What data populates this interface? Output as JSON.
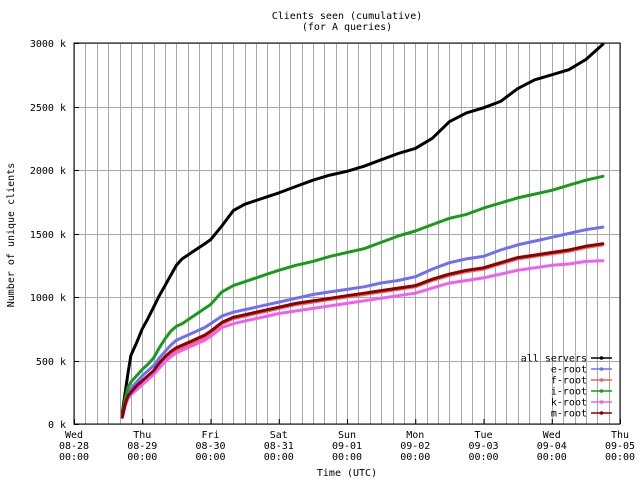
{
  "chart_data": {
    "type": "line",
    "title": "Clients seen (cumulative)",
    "subtitle": "(for A queries)",
    "xlabel": "Time (UTC)",
    "ylabel": "Number of unique clients",
    "xlim": [
      0,
      192
    ],
    "ylim": [
      0,
      3000
    ],
    "y_ticks": [
      {
        "value": 0,
        "label": "0 k"
      },
      {
        "value": 500,
        "label": "500 k"
      },
      {
        "value": 1000,
        "label": "1000 k"
      },
      {
        "value": 1500,
        "label": "1500 k"
      },
      {
        "value": 2000,
        "label": "2000 k"
      },
      {
        "value": 2500,
        "label": "2500 k"
      },
      {
        "value": 3000,
        "label": "3000 k"
      }
    ],
    "x_ticks": [
      {
        "value": 0,
        "day": "Wed",
        "date": "08-28",
        "time": "00:00"
      },
      {
        "value": 24,
        "day": "Thu",
        "date": "08-29",
        "time": "00:00"
      },
      {
        "value": 48,
        "day": "Fri",
        "date": "08-30",
        "time": "00:00"
      },
      {
        "value": 72,
        "day": "Sat",
        "date": "08-31",
        "time": "00:00"
      },
      {
        "value": 96,
        "day": "Sun",
        "date": "09-01",
        "time": "00:00"
      },
      {
        "value": 120,
        "day": "Mon",
        "date": "09-02",
        "time": "00:00"
      },
      {
        "value": 144,
        "day": "Tue",
        "date": "09-03",
        "time": "00:00"
      },
      {
        "value": 168,
        "day": "Wed",
        "date": "09-04",
        "time": "00:00"
      },
      {
        "value": 192,
        "day": "Thu",
        "date": "09-05",
        "time": "00:00"
      }
    ],
    "grid": true,
    "legend_position": "bottom-right",
    "x": [
      17,
      18,
      19,
      20,
      22,
      24,
      26,
      28,
      30,
      32,
      34,
      36,
      38,
      40,
      42,
      44,
      46,
      48,
      52,
      56,
      60,
      64,
      68,
      72,
      78,
      84,
      90,
      96,
      102,
      108,
      114,
      120,
      126,
      132,
      138,
      144,
      150,
      156,
      162,
      168,
      174,
      180,
      186
    ],
    "series": [
      {
        "name": "all servers",
        "color": "#000000",
        "values": [
          90,
          250,
          400,
          540,
          640,
          750,
          830,
          920,
          1010,
          1090,
          1170,
          1250,
          1300,
          1330,
          1360,
          1390,
          1420,
          1450,
          1560,
          1680,
          1730,
          1760,
          1790,
          1820,
          1870,
          1920,
          1960,
          1990,
          2030,
          2080,
          2130,
          2170,
          2250,
          2380,
          2450,
          2490,
          2540,
          2640,
          2710,
          2750,
          2790,
          2870,
          2990
        ]
      },
      {
        "name": "e-root",
        "color": "#6f6ff5",
        "values": [
          60,
          170,
          250,
          280,
          330,
          380,
          420,
          460,
          520,
          570,
          620,
          660,
          680,
          700,
          720,
          740,
          760,
          790,
          850,
          880,
          900,
          920,
          940,
          960,
          990,
          1020,
          1040,
          1060,
          1080,
          1110,
          1130,
          1160,
          1220,
          1270,
          1300,
          1320,
          1370,
          1410,
          1440,
          1470,
          1500,
          1530,
          1550
        ]
      },
      {
        "name": "f-root",
        "color": "#f06060",
        "values": [
          50,
          150,
          210,
          240,
          290,
          330,
          370,
          410,
          460,
          510,
          550,
          580,
          600,
          620,
          640,
          660,
          680,
          720,
          790,
          830,
          850,
          870,
          890,
          910,
          940,
          960,
          980,
          1000,
          1020,
          1040,
          1060,
          1080,
          1130,
          1170,
          1200,
          1220,
          1260,
          1300,
          1320,
          1340,
          1360,
          1390,
          1410
        ]
      },
      {
        "name": "i-root",
        "color": "#1a9a1a",
        "values": [
          70,
          200,
          290,
          330,
          380,
          430,
          470,
          520,
          600,
          670,
          730,
          770,
          790,
          820,
          850,
          880,
          910,
          940,
          1040,
          1090,
          1120,
          1150,
          1180,
          1210,
          1250,
          1280,
          1320,
          1350,
          1380,
          1430,
          1480,
          1520,
          1570,
          1620,
          1650,
          1700,
          1740,
          1780,
          1810,
          1840,
          1880,
          1920,
          1950
        ]
      },
      {
        "name": "k-root",
        "color": "#f060f0",
        "values": [
          50,
          140,
          200,
          230,
          270,
          310,
          350,
          390,
          440,
          490,
          530,
          560,
          580,
          600,
          620,
          640,
          660,
          690,
          760,
          790,
          810,
          830,
          850,
          870,
          890,
          910,
          930,
          950,
          970,
          990,
          1010,
          1030,
          1070,
          1110,
          1130,
          1150,
          1180,
          1210,
          1230,
          1250,
          1260,
          1280,
          1285
        ]
      },
      {
        "name": "m-root",
        "color": "#8b0000",
        "values": [
          55,
          160,
          220,
          250,
          300,
          340,
          380,
          420,
          480,
          530,
          570,
          600,
          620,
          640,
          660,
          680,
          700,
          730,
          800,
          840,
          860,
          880,
          900,
          920,
          950,
          970,
          990,
          1010,
          1030,
          1050,
          1070,
          1090,
          1140,
          1180,
          1210,
          1230,
          1270,
          1310,
          1330,
          1350,
          1370,
          1400,
          1420
        ]
      }
    ]
  }
}
